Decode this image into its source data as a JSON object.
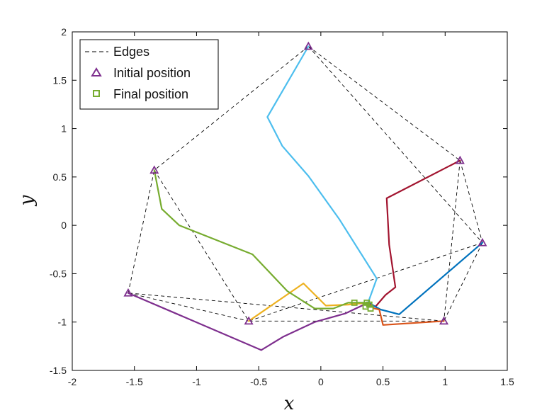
{
  "chart_data": {
    "type": "line",
    "title": "",
    "xlabel": "x",
    "ylabel": "y",
    "xlim": [
      -2,
      1.5
    ],
    "ylim": [
      -1.5,
      2
    ],
    "xticks": [
      -2,
      -1.5,
      -1,
      -0.5,
      0,
      0.5,
      1,
      1.5
    ],
    "yticks": [
      -1.5,
      -1,
      -0.5,
      0,
      0.5,
      1,
      1.5,
      2
    ],
    "xtick_labels": [
      "-2",
      "-1.5",
      "-1",
      "-0.5",
      "0",
      "0.5",
      "1",
      "1.5"
    ],
    "ytick_labels": [
      "-1.5",
      "-1",
      "-0.5",
      "0",
      "0.5",
      "1",
      "1.5",
      "2"
    ],
    "grid": false,
    "legend_placement": "top-left",
    "legend": [
      {
        "label": "Edges",
        "style": "dashed-line",
        "color": "#000000"
      },
      {
        "label": "Initial position",
        "style": "triangle-marker",
        "color": "#7E2F8E"
      },
      {
        "label": "Final position",
        "style": "square-marker",
        "color": "#77AC30"
      }
    ],
    "nodes": [
      {
        "x": -0.1,
        "y": 1.85
      },
      {
        "x": 1.12,
        "y": 0.67
      },
      {
        "x": 1.3,
        "y": -0.18
      },
      {
        "x": 0.99,
        "y": -0.99
      },
      {
        "x": -0.58,
        "y": -0.99
      },
      {
        "x": -1.55,
        "y": -0.7
      },
      {
        "x": -1.34,
        "y": 0.57
      }
    ],
    "edges": [
      [
        0,
        1
      ],
      [
        0,
        6
      ],
      [
        0,
        2
      ],
      [
        1,
        2
      ],
      [
        1,
        3
      ],
      [
        2,
        3
      ],
      [
        2,
        4
      ],
      [
        3,
        4
      ],
      [
        3,
        5
      ],
      [
        5,
        4
      ],
      [
        5,
        6
      ],
      [
        6,
        4
      ]
    ],
    "series": [
      {
        "color": "#4DBEEE",
        "points": [
          [
            -0.1,
            1.85
          ],
          [
            -0.43,
            1.12
          ],
          [
            -0.31,
            0.82
          ],
          [
            -0.1,
            0.51
          ],
          [
            0.15,
            0.06
          ],
          [
            0.45,
            -0.55
          ],
          [
            0.38,
            -0.8
          ]
        ]
      },
      {
        "color": "#A2142F",
        "points": [
          [
            1.12,
            0.67
          ],
          [
            0.53,
            0.28
          ],
          [
            0.55,
            -0.2
          ],
          [
            0.6,
            -0.64
          ],
          [
            0.52,
            -0.72
          ],
          [
            0.44,
            -0.84
          ],
          [
            0.38,
            -0.8
          ]
        ]
      },
      {
        "color": "#0072BD",
        "points": [
          [
            1.3,
            -0.18
          ],
          [
            0.63,
            -0.92
          ],
          [
            0.48,
            -0.87
          ],
          [
            0.38,
            -0.8
          ]
        ]
      },
      {
        "color": "#D95319",
        "points": [
          [
            0.99,
            -0.99
          ],
          [
            0.5,
            -1.03
          ],
          [
            0.47,
            -0.87
          ],
          [
            0.43,
            -0.86
          ],
          [
            0.38,
            -0.8
          ]
        ]
      },
      {
        "color": "#EDB120",
        "points": [
          [
            -0.58,
            -0.99
          ],
          [
            -0.14,
            -0.6
          ],
          [
            0.04,
            -0.83
          ],
          [
            0.22,
            -0.82
          ],
          [
            0.38,
            -0.8
          ]
        ]
      },
      {
        "color": "#7E2F8E",
        "points": [
          [
            -1.55,
            -0.7
          ],
          [
            -0.48,
            -1.29
          ],
          [
            -0.3,
            -1.15
          ],
          [
            -0.05,
            -1.0
          ],
          [
            0.2,
            -0.91
          ],
          [
            0.38,
            -0.8
          ]
        ]
      },
      {
        "color": "#77AC30",
        "points": [
          [
            -1.34,
            0.57
          ],
          [
            -1.28,
            0.17
          ],
          [
            -1.14,
            0.0
          ],
          [
            -0.55,
            -0.3
          ],
          [
            -0.27,
            -0.68
          ],
          [
            -0.05,
            -0.86
          ],
          [
            0.1,
            -0.86
          ],
          [
            0.22,
            -0.8
          ],
          [
            0.38,
            -0.8
          ]
        ]
      }
    ],
    "final_positions": [
      {
        "x": 0.27,
        "y": -0.8
      },
      {
        "x": 0.37,
        "y": -0.8
      },
      {
        "x": 0.39,
        "y": -0.82
      },
      {
        "x": 0.36,
        "y": -0.84
      },
      {
        "x": 0.4,
        "y": -0.86
      }
    ]
  }
}
